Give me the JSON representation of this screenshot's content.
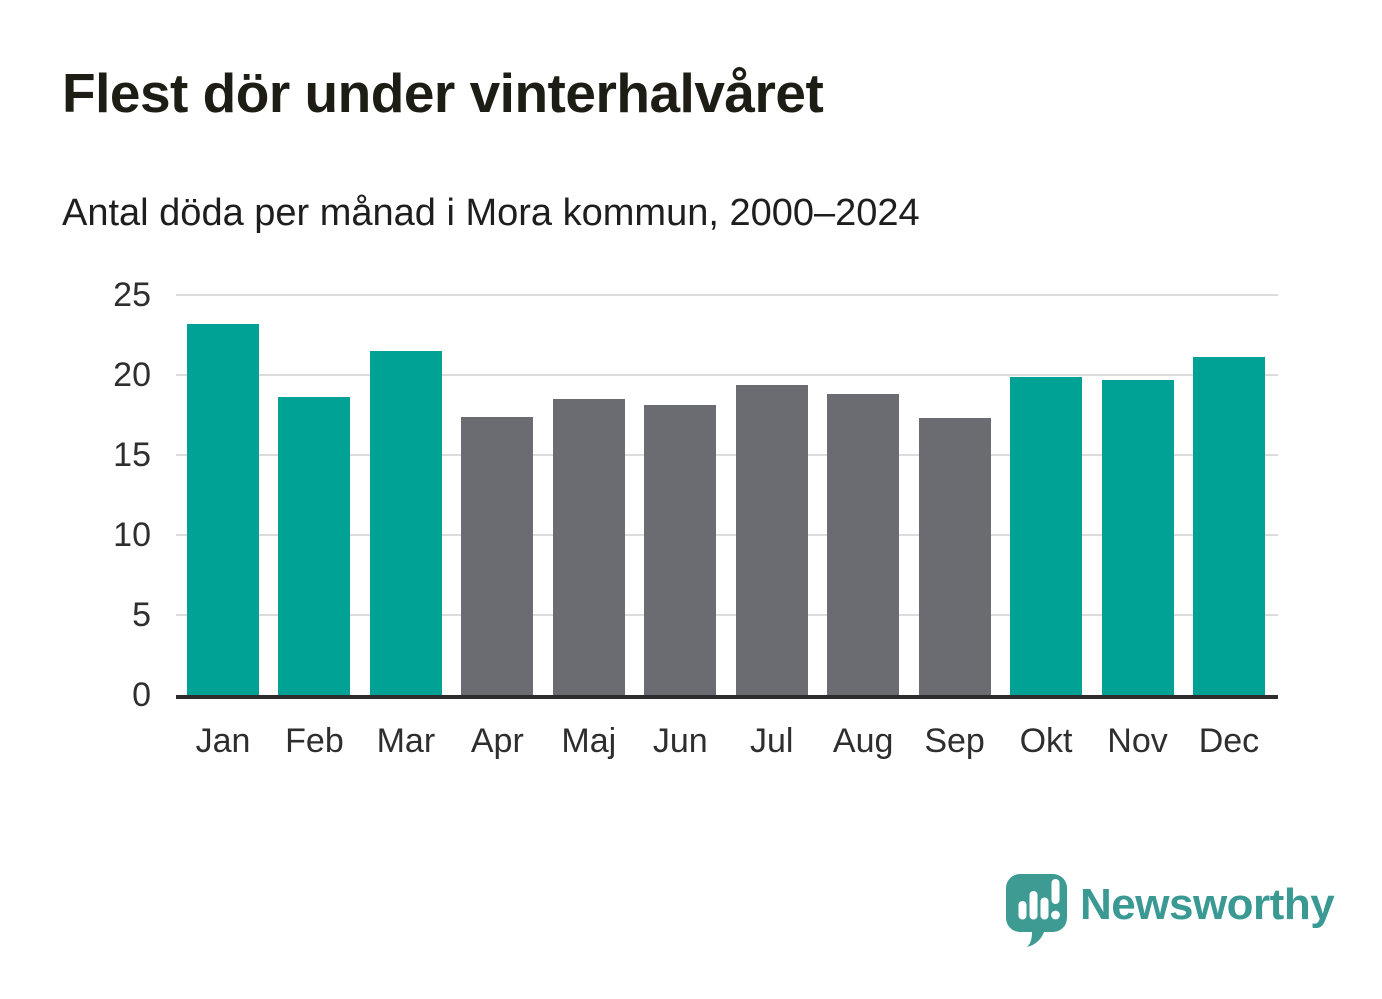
{
  "header": {
    "title": "Flest dör under vinterhalvåret",
    "subtitle": "Antal döda per månad i Mora kommun, 2000–2024"
  },
  "chart_data": {
    "type": "bar",
    "title": "Flest dör under vinterhalvåret",
    "subtitle": "Antal döda per månad i Mora kommun, 2000–2024",
    "categories": [
      "Jan",
      "Feb",
      "Mar",
      "Apr",
      "Maj",
      "Jun",
      "Jul",
      "Aug",
      "Sep",
      "Okt",
      "Nov",
      "Dec"
    ],
    "values": [
      23.2,
      18.6,
      21.5,
      17.4,
      18.5,
      18.1,
      19.4,
      18.8,
      17.3,
      19.9,
      19.7,
      21.1
    ],
    "bar_color_keys": [
      "winter",
      "winter",
      "winter",
      "summer",
      "summer",
      "summer",
      "summer",
      "summer",
      "summer",
      "winter",
      "winter",
      "winter"
    ],
    "palette": {
      "winter": "#00a296",
      "summer": "#6b6b72"
    },
    "xlabel": "",
    "ylabel": "",
    "ylim": [
      0,
      25
    ],
    "yticks": [
      0,
      5,
      10,
      15,
      20,
      25
    ],
    "grid": "horizontal",
    "legend": "none"
  },
  "branding": {
    "wordmark": "Newsworthy",
    "logo_icon": "bar-chart-speech-bubble-icon",
    "brand_color": "#3a9a93"
  },
  "colors": {
    "bar_winter": "#00a296",
    "bar_summer": "#6b6b72",
    "axis_line": "#2d2d2d",
    "gridline": "#dcdcdc",
    "text": "#2e2e2e",
    "title_text": "#1d1d15"
  }
}
